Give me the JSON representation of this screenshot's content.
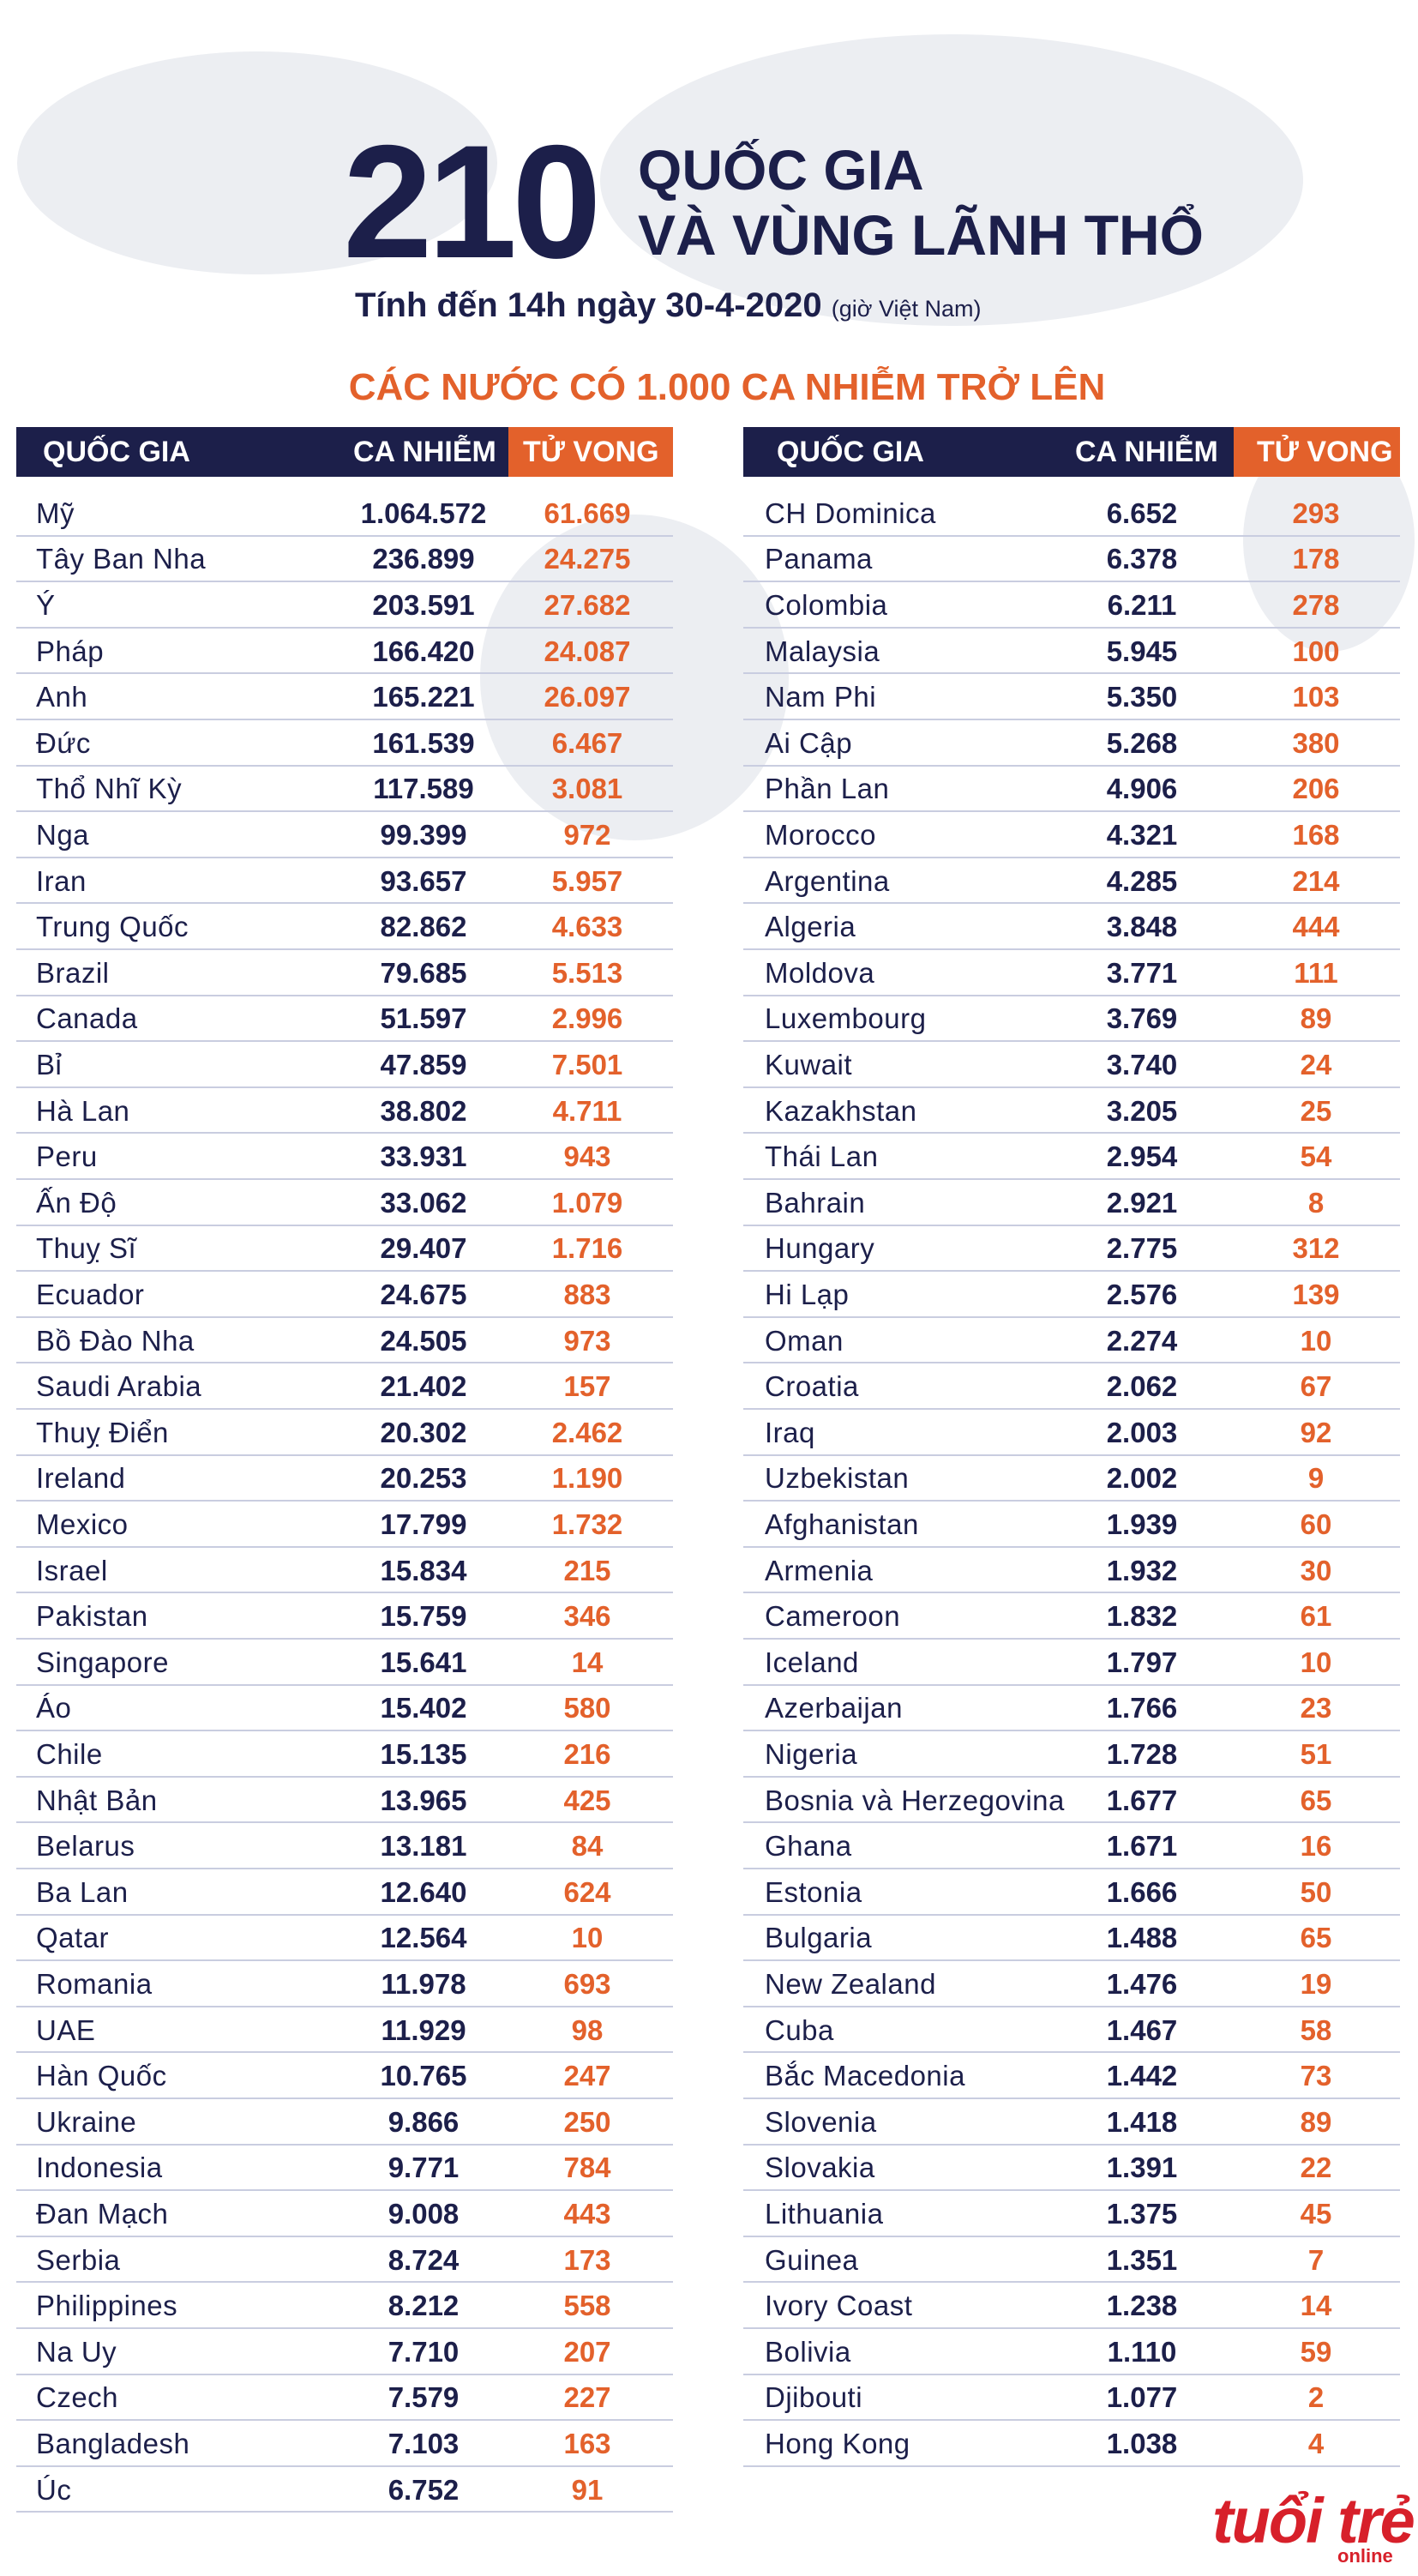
{
  "header": {
    "number": "210",
    "line1": "QUỐC GIA",
    "line2": "VÀ VÙNG LÃNH THỔ",
    "date": "Tính đến 14h ngày 30-4-2020",
    "timezone": "(giờ Việt Nam)"
  },
  "section_title": "CÁC NƯỚC CÓ 1.000 CA NHIỄM TRỞ LÊN",
  "tables": [
    {
      "columns": [
        "QUỐC GIA",
        "CA NHIỄM",
        "TỬ VONG"
      ],
      "rows": [
        [
          "Mỹ",
          "1.064.572",
          "61.669"
        ],
        [
          "Tây Ban Nha",
          "236.899",
          "24.275"
        ],
        [
          "Ý",
          "203.591",
          "27.682"
        ],
        [
          "Pháp",
          "166.420",
          "24.087"
        ],
        [
          "Anh",
          "165.221",
          "26.097"
        ],
        [
          "Đức",
          "161.539",
          "6.467"
        ],
        [
          "Thổ Nhĩ Kỳ",
          "117.589",
          "3.081"
        ],
        [
          "Nga",
          "99.399",
          "972"
        ],
        [
          "Iran",
          "93.657",
          "5.957"
        ],
        [
          "Trung Quốc",
          "82.862",
          "4.633"
        ],
        [
          "Brazil",
          "79.685",
          "5.513"
        ],
        [
          "Canada",
          "51.597",
          "2.996"
        ],
        [
          "Bỉ",
          "47.859",
          "7.501"
        ],
        [
          "Hà Lan",
          "38.802",
          "4.711"
        ],
        [
          "Peru",
          "33.931",
          "943"
        ],
        [
          "Ấn Độ",
          "33.062",
          "1.079"
        ],
        [
          "Thuỵ Sĩ",
          "29.407",
          "1.716"
        ],
        [
          "Ecuador",
          "24.675",
          "883"
        ],
        [
          "Bồ Đào Nha",
          "24.505",
          "973"
        ],
        [
          "Saudi Arabia",
          "21.402",
          "157"
        ],
        [
          "Thuỵ Điển",
          "20.302",
          "2.462"
        ],
        [
          "Ireland",
          "20.253",
          "1.190"
        ],
        [
          "Mexico",
          "17.799",
          "1.732"
        ],
        [
          "Israel",
          "15.834",
          "215"
        ],
        [
          "Pakistan",
          "15.759",
          "346"
        ],
        [
          "Singapore",
          "15.641",
          "14"
        ],
        [
          "Áo",
          "15.402",
          "580"
        ],
        [
          "Chile",
          "15.135",
          "216"
        ],
        [
          "Nhật Bản",
          "13.965",
          "425"
        ],
        [
          "Belarus",
          "13.181",
          "84"
        ],
        [
          "Ba Lan",
          "12.640",
          "624"
        ],
        [
          "Qatar",
          "12.564",
          "10"
        ],
        [
          "Romania",
          "11.978",
          "693"
        ],
        [
          "UAE",
          "11.929",
          "98"
        ],
        [
          "Hàn Quốc",
          "10.765",
          "247"
        ],
        [
          "Ukraine",
          "9.866",
          "250"
        ],
        [
          "Indonesia",
          "9.771",
          "784"
        ],
        [
          "Đan Mạch",
          "9.008",
          "443"
        ],
        [
          "Serbia",
          "8.724",
          "173"
        ],
        [
          "Philippines",
          "8.212",
          "558"
        ],
        [
          "Na Uy",
          "7.710",
          "207"
        ],
        [
          "Czech",
          "7.579",
          "227"
        ],
        [
          "Bangladesh",
          "7.103",
          "163"
        ],
        [
          "Úc",
          "6.752",
          "91"
        ]
      ]
    },
    {
      "columns": [
        "QUỐC GIA",
        "CA NHIỄM",
        "TỬ VONG"
      ],
      "rows": [
        [
          "CH Dominica",
          "6.652",
          "293"
        ],
        [
          "Panama",
          "6.378",
          "178"
        ],
        [
          "Colombia",
          "6.211",
          "278"
        ],
        [
          "Malaysia",
          "5.945",
          "100"
        ],
        [
          "Nam Phi",
          "5.350",
          "103"
        ],
        [
          "Ai Cập",
          "5.268",
          "380"
        ],
        [
          "Phần Lan",
          "4.906",
          "206"
        ],
        [
          "Morocco",
          "4.321",
          "168"
        ],
        [
          "Argentina",
          "4.285",
          "214"
        ],
        [
          "Algeria",
          "3.848",
          "444"
        ],
        [
          "Moldova",
          "3.771",
          "111"
        ],
        [
          "Luxembourg",
          "3.769",
          "89"
        ],
        [
          "Kuwait",
          "3.740",
          "24"
        ],
        [
          "Kazakhstan",
          "3.205",
          "25"
        ],
        [
          "Thái Lan",
          "2.954",
          "54"
        ],
        [
          "Bahrain",
          "2.921",
          "8"
        ],
        [
          "Hungary",
          "2.775",
          "312"
        ],
        [
          "Hi Lạp",
          "2.576",
          "139"
        ],
        [
          "Oman",
          "2.274",
          "10"
        ],
        [
          "Croatia",
          "2.062",
          "67"
        ],
        [
          "Iraq",
          "2.003",
          "92"
        ],
        [
          "Uzbekistan",
          "2.002",
          "9"
        ],
        [
          "Afghanistan",
          "1.939",
          "60"
        ],
        [
          "Armenia",
          "1.932",
          "30"
        ],
        [
          "Cameroon",
          "1.832",
          "61"
        ],
        [
          "Iceland",
          "1.797",
          "10"
        ],
        [
          "Azerbaijan",
          "1.766",
          "23"
        ],
        [
          "Nigeria",
          "1.728",
          "51"
        ],
        [
          "Bosnia và Herzegovina",
          "1.677",
          "65"
        ],
        [
          "Ghana",
          "1.671",
          "16"
        ],
        [
          "Estonia",
          "1.666",
          "50"
        ],
        [
          "Bulgaria",
          "1.488",
          "65"
        ],
        [
          "New Zealand",
          "1.476",
          "19"
        ],
        [
          "Cuba",
          "1.467",
          "58"
        ],
        [
          "Bắc Macedonia",
          "1.442",
          "73"
        ],
        [
          "Slovenia",
          "1.418",
          "89"
        ],
        [
          "Slovakia",
          "1.391",
          "22"
        ],
        [
          "Lithuania",
          "1.375",
          "45"
        ],
        [
          "Guinea",
          "1.351",
          "7"
        ],
        [
          "Ivory Coast",
          "1.238",
          "14"
        ],
        [
          "Bolivia",
          "1.110",
          "59"
        ],
        [
          "Djibouti",
          "1.077",
          "2"
        ],
        [
          "Hong Kong",
          "1.038",
          "4"
        ]
      ]
    }
  ],
  "logo": {
    "brand": "tuổi trẻ",
    "sub": "online"
  }
}
